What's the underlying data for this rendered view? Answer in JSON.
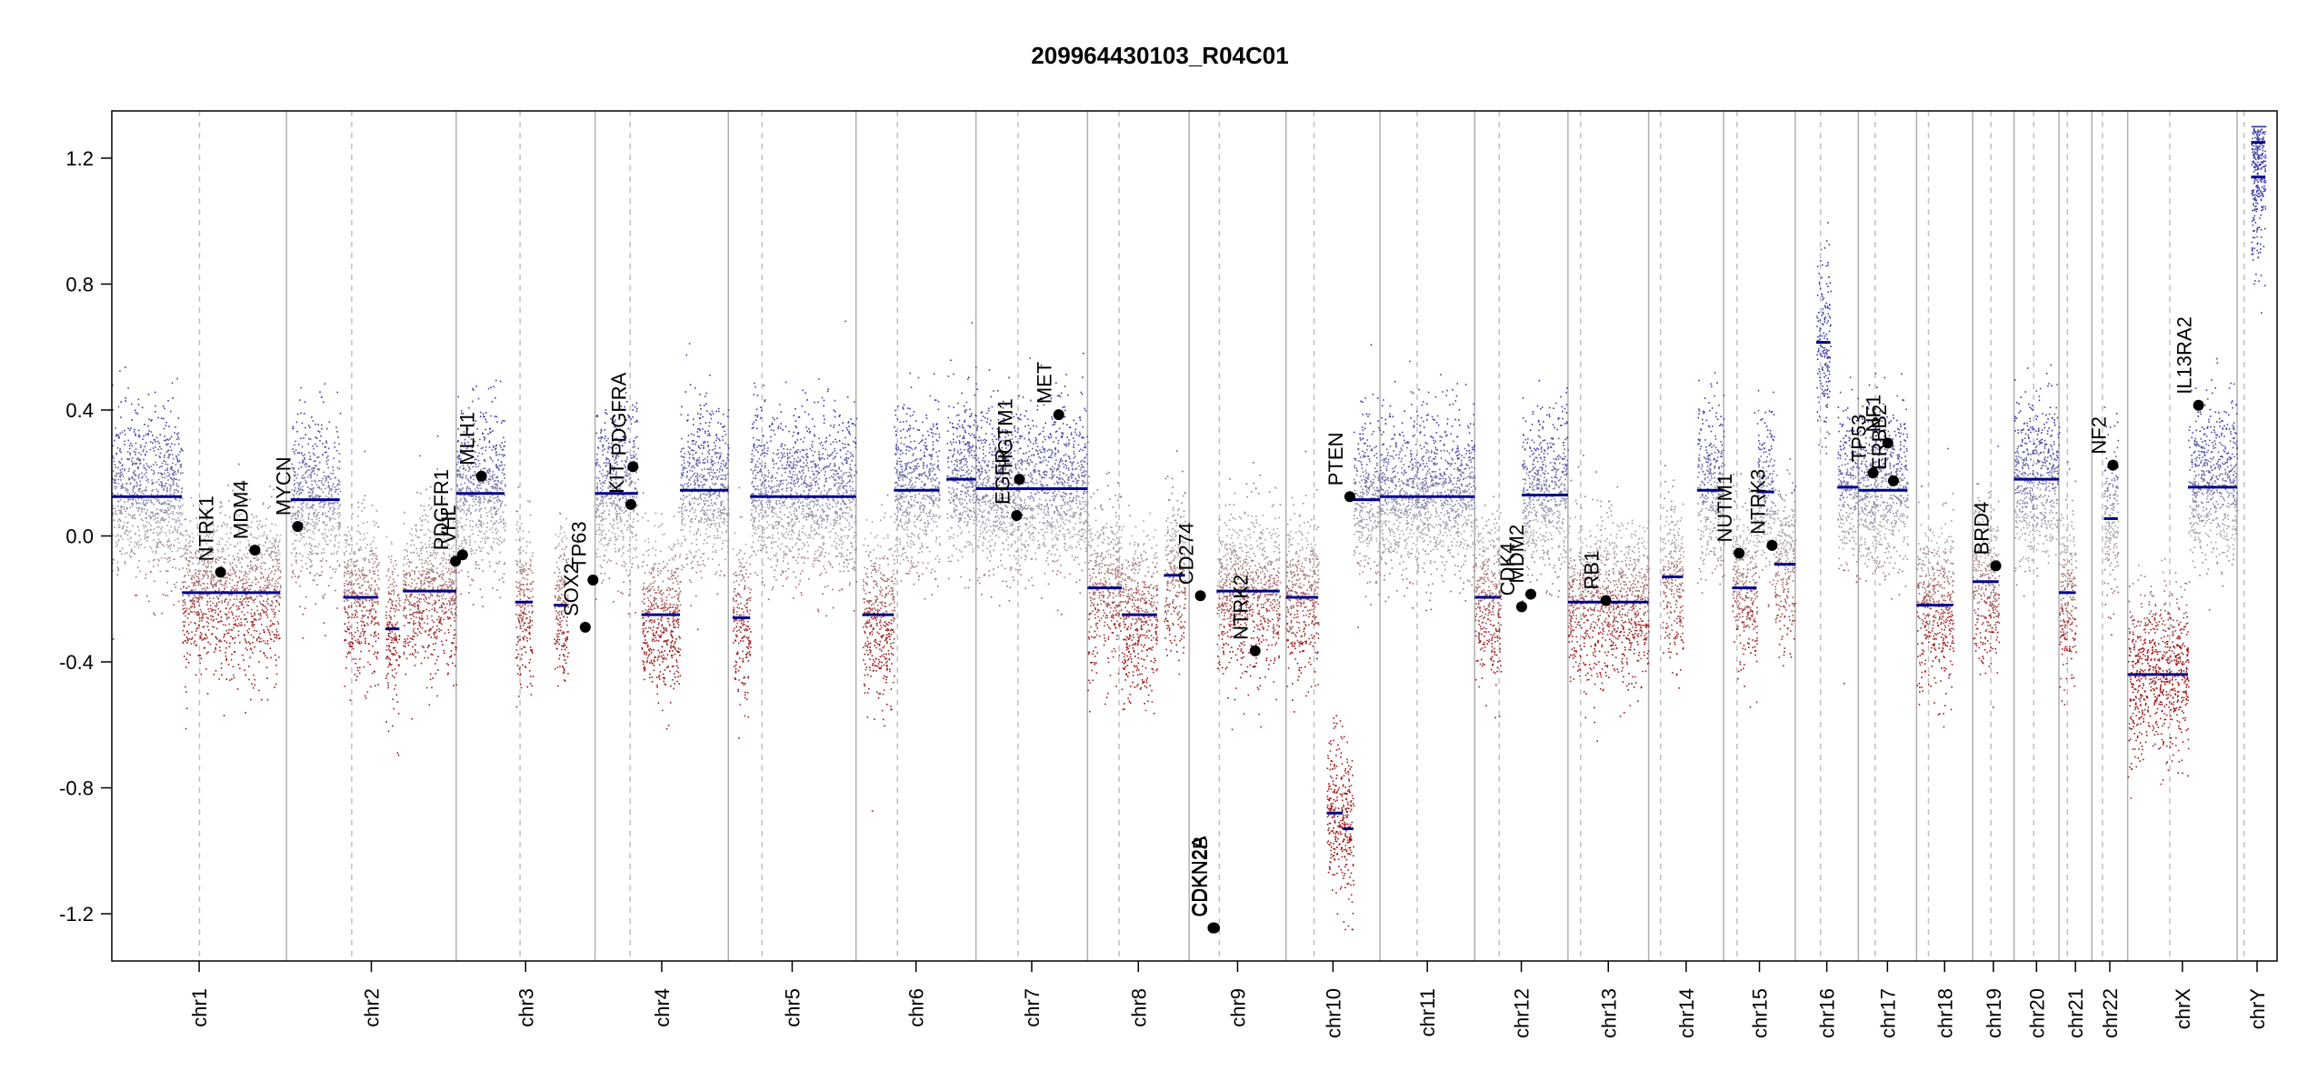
{
  "chart_data": {
    "type": "scatter",
    "title": "209964430103_R04C01",
    "xlabel": "",
    "ylabel": "",
    "ylim": [
      -1.35,
      1.35
    ],
    "yticks": [
      -1.2,
      -0.8,
      -0.4,
      0.0,
      0.4,
      0.8,
      1.2
    ],
    "ytick_labels": [
      "-1.2",
      "-0.8",
      "-0.4",
      "0.0",
      "0.4",
      "0.8",
      "1.2"
    ],
    "grid": false,
    "colors": {
      "gain": "#3a3aa8",
      "loss": "#a01818",
      "neutral": "#a8a8a8",
      "segment": "#00008b",
      "chrom_boundary": "#b0b0b0",
      "centromere": "#c0c0c0",
      "gene_point": "#000000"
    },
    "chromosomes": [
      {
        "name": "chr1",
        "start": 0,
        "end": 249,
        "cen": 125
      },
      {
        "name": "chr2",
        "start": 249,
        "end": 491,
        "cen": 93
      },
      {
        "name": "chr3",
        "start": 491,
        "end": 689,
        "cen": 91
      },
      {
        "name": "chr4",
        "start": 689,
        "end": 879,
        "cen": 50
      },
      {
        "name": "chr5",
        "start": 879,
        "end": 1061,
        "cen": 48
      },
      {
        "name": "chr6",
        "start": 1061,
        "end": 1232,
        "cen": 59
      },
      {
        "name": "chr7",
        "start": 1232,
        "end": 1391,
        "cen": 60
      },
      {
        "name": "chr8",
        "start": 1391,
        "end": 1536,
        "cen": 45
      },
      {
        "name": "chr9",
        "start": 1536,
        "end": 1674,
        "cen": 43
      },
      {
        "name": "chr10",
        "start": 1674,
        "end": 1808,
        "cen": 40
      },
      {
        "name": "chr11",
        "start": 1808,
        "end": 1943,
        "cen": 53
      },
      {
        "name": "chr12",
        "start": 1943,
        "end": 2076,
        "cen": 35
      },
      {
        "name": "chr13",
        "start": 2076,
        "end": 2191,
        "cen": 18
      },
      {
        "name": "chr14",
        "start": 2191,
        "end": 2298,
        "cen": 17
      },
      {
        "name": "chr15",
        "start": 2298,
        "end": 2400,
        "cen": 19
      },
      {
        "name": "chr16",
        "start": 2400,
        "end": 2490,
        "cen": 36
      },
      {
        "name": "chr17",
        "start": 2490,
        "end": 2573,
        "cen": 24
      },
      {
        "name": "chr18",
        "start": 2573,
        "end": 2653,
        "cen": 17
      },
      {
        "name": "chr19",
        "start": 2653,
        "end": 2712,
        "cen": 26
      },
      {
        "name": "chr20",
        "start": 2712,
        "end": 2776,
        "cen": 28
      },
      {
        "name": "chr21",
        "start": 2776,
        "end": 2823,
        "cen": 12
      },
      {
        "name": "chr22",
        "start": 2823,
        "end": 2874,
        "cen": 15
      },
      {
        "name": "chrX",
        "start": 2874,
        "end": 3030,
        "cen": 60
      },
      {
        "name": "chrY",
        "start": 3030,
        "end": 3087,
        "cen": 10
      }
    ],
    "segments": [
      {
        "x0": 0,
        "x1": 100,
        "y": 0.125
      },
      {
        "x0": 100,
        "x1": 240,
        "y": -0.18
      },
      {
        "x0": 255,
        "x1": 325,
        "y": 0.115
      },
      {
        "x0": 330,
        "x1": 380,
        "y": -0.195
      },
      {
        "x0": 390,
        "x1": 410,
        "y": -0.295
      },
      {
        "x0": 415,
        "x1": 491,
        "y": -0.175
      },
      {
        "x0": 491,
        "x1": 560,
        "y": 0.135
      },
      {
        "x0": 575,
        "x1": 600,
        "y": -0.21
      },
      {
        "x0": 630,
        "x1": 650,
        "y": -0.22
      },
      {
        "x0": 689,
        "x1": 750,
        "y": 0.135
      },
      {
        "x0": 755,
        "x1": 810,
        "y": -0.25
      },
      {
        "x0": 810,
        "x1": 879,
        "y": 0.145
      },
      {
        "x0": 885,
        "x1": 910,
        "y": -0.26
      },
      {
        "x0": 910,
        "x1": 1061,
        "y": 0.125
      },
      {
        "x0": 1070,
        "x1": 1115,
        "y": -0.25
      },
      {
        "x0": 1115,
        "x1": 1180,
        "y": 0.145
      },
      {
        "x0": 1190,
        "x1": 1232,
        "y": 0.18
      },
      {
        "x0": 1232,
        "x1": 1391,
        "y": 0.15
      },
      {
        "x0": 1391,
        "x1": 1440,
        "y": -0.165
      },
      {
        "x0": 1440,
        "x1": 1490,
        "y": -0.25
      },
      {
        "x0": 1500,
        "x1": 1530,
        "y": -0.125
      },
      {
        "x0": 1575,
        "x1": 1665,
        "y": -0.175
      },
      {
        "x0": 1674,
        "x1": 1720,
        "y": -0.195
      },
      {
        "x0": 1732,
        "x1": 1755,
        "y": -0.88
      },
      {
        "x0": 1755,
        "x1": 1770,
        "y": -0.93
      },
      {
        "x0": 1770,
        "x1": 1808,
        "y": 0.115
      },
      {
        "x0": 1808,
        "x1": 1943,
        "y": 0.125
      },
      {
        "x0": 1943,
        "x1": 1980,
        "y": -0.195
      },
      {
        "x0": 2010,
        "x1": 2076,
        "y": 0.13
      },
      {
        "x0": 2076,
        "x1": 2191,
        "y": -0.21
      },
      {
        "x0": 2210,
        "x1": 2240,
        "y": -0.13
      },
      {
        "x0": 2260,
        "x1": 2298,
        "y": 0.145
      },
      {
        "x0": 2310,
        "x1": 2345,
        "y": -0.165
      },
      {
        "x0": 2345,
        "x1": 2370,
        "y": 0.14
      },
      {
        "x0": 2370,
        "x1": 2400,
        "y": -0.09
      },
      {
        "x0": 2430,
        "x1": 2450,
        "y": 0.615
      },
      {
        "x0": 2460,
        "x1": 2490,
        "y": 0.155
      },
      {
        "x0": 2490,
        "x1": 2560,
        "y": 0.145
      },
      {
        "x0": 2573,
        "x1": 2625,
        "y": -0.22
      },
      {
        "x0": 2653,
        "x1": 2690,
        "y": -0.145
      },
      {
        "x0": 2712,
        "x1": 2776,
        "y": 0.18
      },
      {
        "x0": 2776,
        "x1": 2800,
        "y": -0.18
      },
      {
        "x0": 2840,
        "x1": 2860,
        "y": 0.055
      },
      {
        "x0": 2874,
        "x1": 2960,
        "y": -0.44
      },
      {
        "x0": 2960,
        "x1": 3030,
        "y": 0.155
      },
      {
        "x0": 3050,
        "x1": 3070,
        "y": 1.14
      },
      {
        "x0": 3050,
        "x1": 3070,
        "y": 1.25
      }
    ],
    "genes": [
      {
        "name": "NTRK1",
        "x": 155,
        "y": -0.115
      },
      {
        "name": "MDM4",
        "x": 204,
        "y": -0.045
      },
      {
        "name": "MYCN",
        "x": 265,
        "y": 0.03
      },
      {
        "name": "PDGFR1",
        "x": 490,
        "y": -0.08
      },
      {
        "name": "VHL",
        "x": 500,
        "y": -0.06
      },
      {
        "name": "MLH1",
        "x": 527,
        "y": 0.19
      },
      {
        "name": "SOX2",
        "x": 675,
        "y": -0.29
      },
      {
        "name": "TP63",
        "x": 686,
        "y": -0.14
      },
      {
        "name": "KIT",
        "x": 740,
        "y": 0.1
      },
      {
        "name": "PDGFRA",
        "x": 743,
        "y": 0.22
      },
      {
        "name": "EGFR",
        "x": 1290,
        "y": 0.065
      },
      {
        "name": "HGTM1",
        "x": 1294,
        "y": 0.18
      },
      {
        "name": "MET",
        "x": 1350,
        "y": 0.385
      },
      {
        "name": "CD274",
        "x": 1552,
        "y": -0.19
      },
      {
        "name": "CDKN2A",
        "x": 1570,
        "y": -1.245
      },
      {
        "name": "CDKN2B",
        "x": 1572,
        "y": -1.245
      },
      {
        "name": "NTRK2",
        "x": 1630,
        "y": -0.365
      },
      {
        "name": "PTEN",
        "x": 1765,
        "y": 0.125
      },
      {
        "name": "CDK4",
        "x": 2010,
        "y": -0.225
      },
      {
        "name": "MDM2",
        "x": 2023,
        "y": -0.185
      },
      {
        "name": "RB1",
        "x": 2130,
        "y": -0.205
      },
      {
        "name": "NUTM1",
        "x": 2320,
        "y": -0.055
      },
      {
        "name": "NTRK3",
        "x": 2367,
        "y": -0.03
      },
      {
        "name": "TP53",
        "x": 2511,
        "y": 0.2
      },
      {
        "name": "NF1",
        "x": 2532,
        "y": 0.295
      },
      {
        "name": "ERBB2",
        "x": 2540,
        "y": 0.175
      },
      {
        "name": "BRD4",
        "x": 2686,
        "y": -0.095
      },
      {
        "name": "NF2",
        "x": 2853,
        "y": 0.225
      },
      {
        "name": "IL13RA2",
        "x": 2975,
        "y": 0.415
      }
    ]
  }
}
